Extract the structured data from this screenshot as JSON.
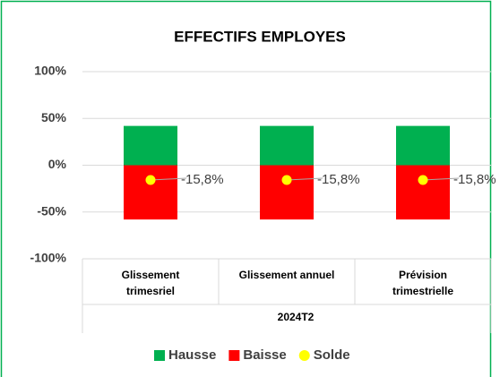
{
  "chart_data": {
    "type": "bar",
    "stacked": true,
    "title": "EFFECTIFS EMPLOYES",
    "categories": [
      "Glissement trimesriel",
      "Glissement  annuel",
      "Prévision trimestrielle"
    ],
    "group_label": "2024T2",
    "series": [
      {
        "name": "Hausse",
        "color": "#00b050",
        "values": [
          42,
          42,
          42
        ]
      },
      {
        "name": "Baisse",
        "color": "#ff0000",
        "values": [
          -58,
          -58,
          -58
        ]
      },
      {
        "name": "Solde",
        "color": "#ffff00",
        "marker": "dot",
        "values": [
          -15.8,
          -15.8,
          -15.8
        ],
        "value_labels": [
          "-15,8%",
          "-15,8%",
          "-15,8%"
        ]
      }
    ],
    "ylim": [
      -100,
      100
    ],
    "yticks": [
      {
        "value": 100,
        "label": "100%"
      },
      {
        "value": 50,
        "label": "50%"
      },
      {
        "value": 0,
        "label": "0%"
      },
      {
        "value": -50,
        "label": "-50%"
      },
      {
        "value": -100,
        "label": "-100%"
      }
    ],
    "grid": true,
    "legend": "bottom"
  }
}
